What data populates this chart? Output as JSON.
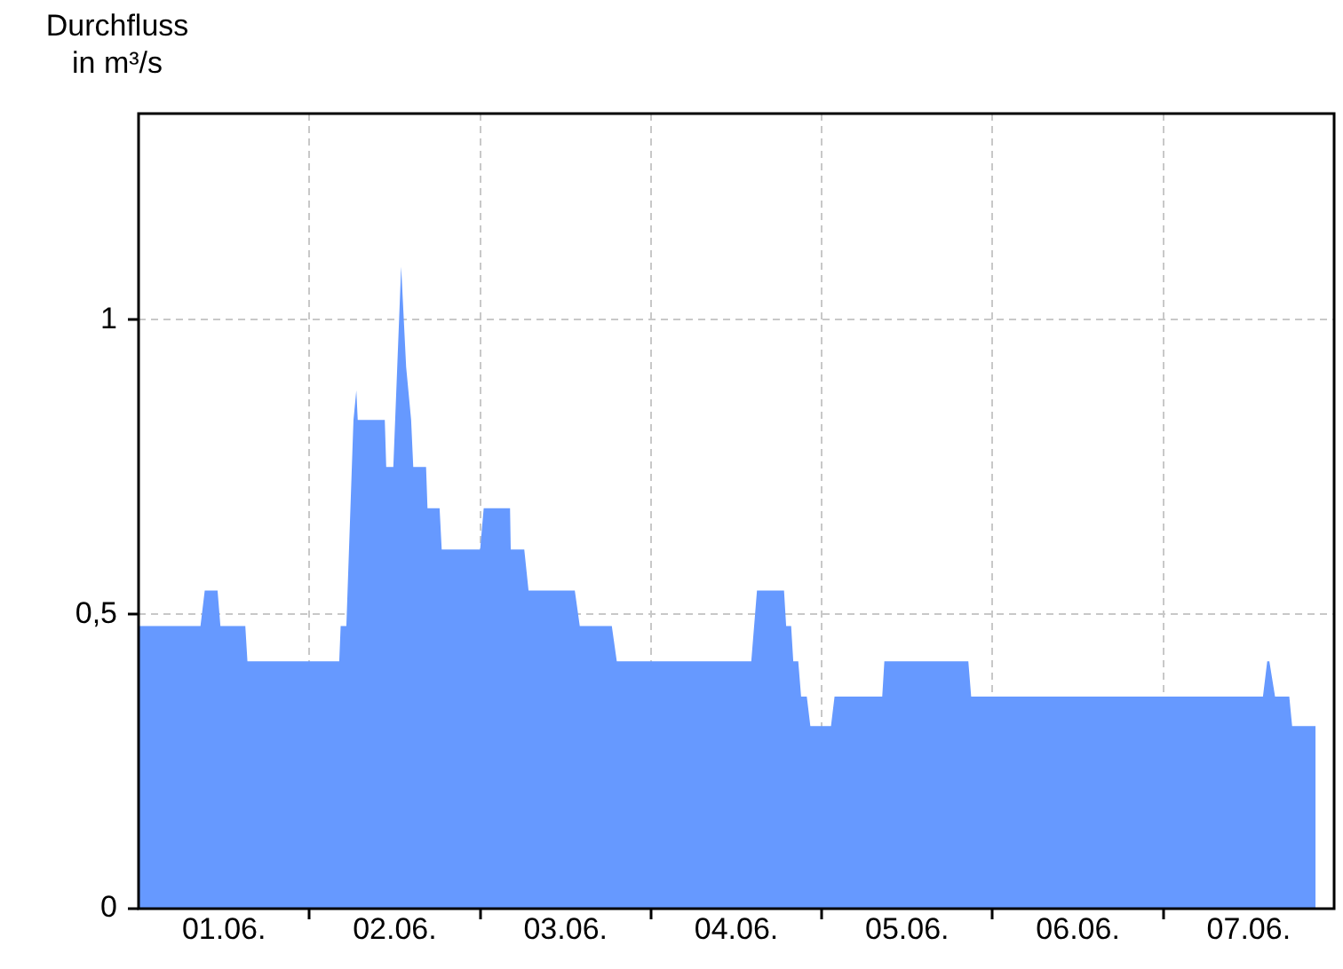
{
  "chart_data": {
    "type": "area",
    "ylabel": "Durchfluss in m³/s",
    "color": "#6699ff",
    "x": [
      "--06-01T00:00",
      "--06-01T08:42",
      "--06-01T09:18",
      "--06-01T11:06",
      "--06-01T11:30",
      "--06-01T15:00",
      "--06-01T15:18",
      "--06-02T04:12",
      "--06-02T04:24",
      "--06-02T05:12",
      "--06-02T06:12",
      "--06-02T06:36",
      "--06-02T06:48",
      "--06-02T10:36",
      "--06-02T10:48",
      "--06-02T11:48",
      "--06-02T12:54",
      "--06-02T13:36",
      "--06-02T14:18",
      "--06-02T14:36",
      "--06-02T16:24",
      "--06-02T16:36",
      "--06-02T18:18",
      "--06-02T18:36",
      "--06-03T00:00",
      "--06-03T00:30",
      "--06-03T04:12",
      "--06-03T04:18",
      "--06-03T06:12",
      "--06-03T06:48",
      "--06-03T13:18",
      "--06-03T14:00",
      "--06-03T18:30",
      "--06-03T19:12",
      "--06-04T14:06",
      "--06-04T14:54",
      "--06-04T18:42",
      "--06-04T19:00",
      "--06-04T19:42",
      "--06-04T20:00",
      "--06-04T20:42",
      "--06-04T21:06",
      "--06-04T21:54",
      "--06-04T22:24",
      "--06-05T01:18",
      "--06-05T01:48",
      "--06-05T08:30",
      "--06-05T08:48",
      "--06-05T20:36",
      "--06-05T21:00",
      "--06-07T14:00",
      "--06-07T14:36",
      "--06-07T14:54",
      "--06-07T15:42",
      "--06-07T17:42",
      "--06-07T18:06",
      "--06-07T21:24"
    ],
    "values": [
      0.48,
      0.48,
      0.54,
      0.54,
      0.48,
      0.48,
      0.42,
      0.42,
      0.48,
      0.48,
      0.83,
      0.88,
      0.83,
      0.83,
      0.75,
      0.75,
      1.09,
      0.92,
      0.83,
      0.75,
      0.75,
      0.68,
      0.68,
      0.61,
      0.61,
      0.68,
      0.68,
      0.61,
      0.61,
      0.54,
      0.54,
      0.48,
      0.48,
      0.42,
      0.42,
      0.54,
      0.54,
      0.48,
      0.48,
      0.42,
      0.42,
      0.36,
      0.36,
      0.31,
      0.31,
      0.36,
      0.36,
      0.42,
      0.42,
      0.36,
      0.36,
      0.42,
      0.42,
      0.36,
      0.36,
      0.31,
      0.31
    ],
    "xlim": [
      "--06-01T00:00",
      "--06-08T00:00"
    ],
    "xticks": [
      {
        "value": "--06-01T12:00",
        "label": "01.06."
      },
      {
        "value": "--06-02T00:00",
        "label": null
      },
      {
        "value": "--06-02T12:00",
        "label": "02.06."
      },
      {
        "value": "--06-03T00:00",
        "label": null
      },
      {
        "value": "--06-03T12:00",
        "label": "03.06."
      },
      {
        "value": "--06-04T00:00",
        "label": null
      },
      {
        "value": "--06-04T12:00",
        "label": "04.06."
      },
      {
        "value": "--06-05T00:00",
        "label": null
      },
      {
        "value": "--06-05T12:00",
        "label": "05.06."
      },
      {
        "value": "--06-06T00:00",
        "label": null
      },
      {
        "value": "--06-06T12:00",
        "label": "06.06."
      },
      {
        "value": "--06-07T00:00",
        "label": null
      },
      {
        "value": "--06-07T12:00",
        "label": "07.06."
      }
    ],
    "ylim": [
      0,
      1.35
    ],
    "yticks": [
      0,
      {
        "value": 0.5,
        "label": "0,5"
      },
      1
    ],
    "grid": true
  }
}
